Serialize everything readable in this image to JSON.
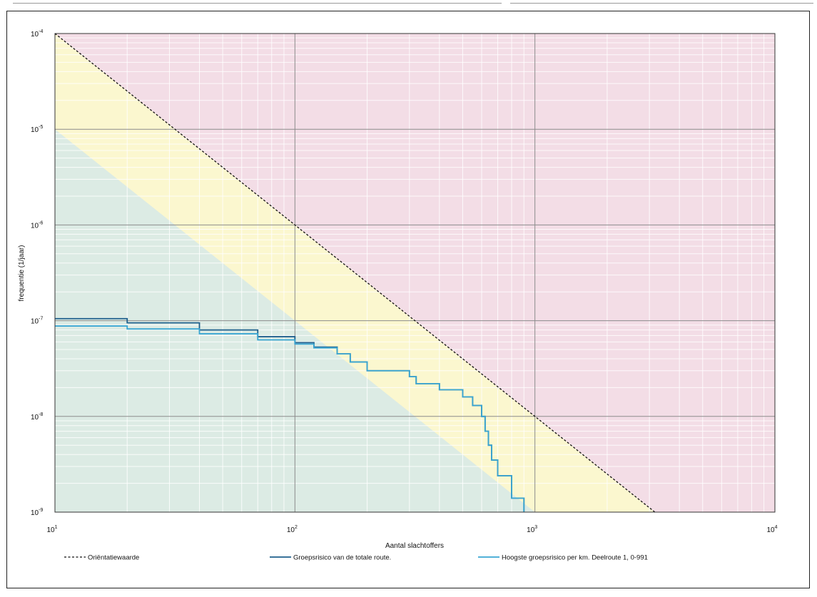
{
  "chart_data": {
    "type": "line",
    "xlabel": "Aantal slachtoffers",
    "ylabel": "frequentie (1/jaar)",
    "x_scale": "log",
    "y_scale": "log",
    "xlim": [
      10,
      10000
    ],
    "ylim": [
      1e-09,
      0.0001
    ],
    "x_ticks": [
      {
        "value": 10,
        "base": "10",
        "exp": "1"
      },
      {
        "value": 100,
        "base": "10",
        "exp": "2"
      },
      {
        "value": 1000,
        "base": "10",
        "exp": "3"
      },
      {
        "value": 10000,
        "base": "10",
        "exp": "4"
      }
    ],
    "y_ticks": [
      {
        "value": 0.0001,
        "base": "10",
        "exp": "-4"
      },
      {
        "value": 1e-05,
        "base": "10",
        "exp": "-5"
      },
      {
        "value": 1e-06,
        "base": "10",
        "exp": "-6"
      },
      {
        "value": 1e-07,
        "base": "10",
        "exp": "-7"
      },
      {
        "value": 1e-08,
        "base": "10",
        "exp": "-8"
      },
      {
        "value": 1e-09,
        "base": "10",
        "exp": "-9"
      }
    ],
    "grid": true,
    "legend_position": "bottom",
    "regions": [
      {
        "color": "#f3dde6",
        "note": "above orientation value"
      },
      {
        "color": "#fbf7cf",
        "note": "between 0.1x and 1x orientation value"
      },
      {
        "color": "#dcebe4",
        "note": "below 0.1x orientation value"
      }
    ],
    "series": [
      {
        "name": "Oriëntatiewaarde",
        "style": "dashed",
        "color": "#111111",
        "x": [
          10,
          3162
        ],
        "y": [
          0.0001,
          1e-09
        ]
      },
      {
        "name": "Groepsrisico van de totale route.",
        "style": "step",
        "color": "#1e5f8c",
        "x": [
          10,
          20,
          40,
          70,
          100,
          120,
          150,
          170,
          200,
          300,
          320,
          400,
          500,
          550,
          600,
          620,
          640,
          660,
          700,
          800,
          900
        ],
        "y": [
          1.05e-07,
          9.5e-08,
          8e-08,
          6.8e-08,
          5.9e-08,
          5.3e-08,
          4.5e-08,
          3.7e-08,
          3e-08,
          2.6e-08,
          2.2e-08,
          1.9e-08,
          1.6e-08,
          1.3e-08,
          1e-08,
          7e-09,
          5e-09,
          3.5e-09,
          2.4e-09,
          1.4e-09,
          1e-09
        ]
      },
      {
        "name": "Hoogste groepsrisico per km. Deelroute 1, 0-991",
        "style": "step",
        "color": "#3aa6d2",
        "x": [
          10,
          20,
          40,
          70,
          100,
          120,
          150,
          170,
          200,
          300,
          320,
          400,
          500,
          550,
          600,
          620,
          640,
          660,
          700,
          800,
          900
        ],
        "y": [
          8.8e-08,
          8.2e-08,
          7.3e-08,
          6.3e-08,
          5.7e-08,
          5.2e-08,
          4.5e-08,
          3.7e-08,
          3e-08,
          2.6e-08,
          2.2e-08,
          1.9e-08,
          1.6e-08,
          1.3e-08,
          1e-08,
          7e-09,
          5e-09,
          3.5e-09,
          2.4e-09,
          1.4e-09,
          1e-09
        ]
      }
    ]
  }
}
